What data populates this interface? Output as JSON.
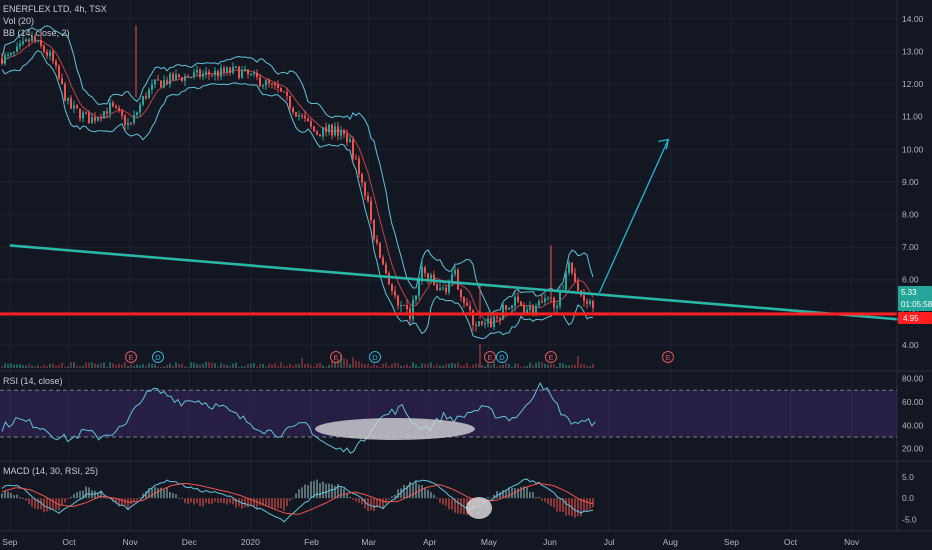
{
  "header": {
    "title": "ENERFLEX LTD, 4h, TSX",
    "volume_label": "Vol (20)",
    "bb_label": "BB (14, close, 2)"
  },
  "rsi": {
    "label": "RSI (14, close)",
    "ticks": [
      "80.00",
      "60.00",
      "40.00",
      "20.00"
    ]
  },
  "macd": {
    "label": "MACD (14, 30, RSI, 25)",
    "ticks": [
      "5.0",
      "0.0",
      "-5.0"
    ]
  },
  "price_axis": {
    "ticks": [
      "14.00",
      "13.00",
      "12.00",
      "11.00",
      "10.00",
      "9.00",
      "8.00",
      "7.00",
      "6.00",
      "5.00",
      "4.00"
    ],
    "current_price": "5.33",
    "countdown": "01:05:58",
    "support_price": "4.95"
  },
  "time_axis": [
    "Sep",
    "Oct",
    "Nov",
    "Dec",
    "2020",
    "Feb",
    "Mar",
    "Apr",
    "May",
    "Jun",
    "Jul",
    "Aug",
    "Sep",
    "Oct",
    "Nov"
  ],
  "events": [
    "E",
    "D",
    "E",
    "D",
    "E",
    "D",
    "E",
    "E"
  ],
  "colors": {
    "background": "#131722",
    "candle_up": "#26a69a",
    "candle_down": "#ef5350",
    "bollinger": "#5fc3dc",
    "bb_basis": "#e05050",
    "trendline": "#2bb5a6",
    "support": "#ff1f1f",
    "arrow": "#22b5d9",
    "rsi_line": "#5fc3dc",
    "rsi_band": "#7e57c2",
    "macd_line": "#5fc3dc",
    "signal_line": "#ef5350"
  },
  "chart_data": {
    "type": "line",
    "symbol": "ENERFLEX LTD",
    "interval": "4h",
    "exchange": "TSX",
    "ylim": [
      3.6,
      14.3
    ],
    "log_scale": false,
    "grid": true,
    "price_path": [
      {
        "x": "2019-09-01",
        "y": 12.8
      },
      {
        "x": "2019-09-12",
        "y": 13.4
      },
      {
        "x": "2019-09-22",
        "y": 12.8
      },
      {
        "x": "2019-10-01",
        "y": 11.3
      },
      {
        "x": "2019-10-12",
        "y": 10.9
      },
      {
        "x": "2019-10-22",
        "y": 11.3
      },
      {
        "x": "2019-11-01",
        "y": 10.7
      },
      {
        "x": "2019-11-08",
        "y": 11.6
      },
      {
        "x": "2019-11-14",
        "y": 12.0
      },
      {
        "x": "2019-11-25",
        "y": 12.2
      },
      {
        "x": "2019-12-10",
        "y": 12.3
      },
      {
        "x": "2019-12-25",
        "y": 12.4
      },
      {
        "x": "2020-01-06",
        "y": 12.1
      },
      {
        "x": "2020-01-15",
        "y": 11.8
      },
      {
        "x": "2020-01-25",
        "y": 11.1
      },
      {
        "x": "2020-02-03",
        "y": 10.5
      },
      {
        "x": "2020-02-12",
        "y": 10.6
      },
      {
        "x": "2020-02-20",
        "y": 10.3
      },
      {
        "x": "2020-02-28",
        "y": 8.7
      },
      {
        "x": "2020-03-05",
        "y": 7.0
      },
      {
        "x": "2020-03-10",
        "y": 6.2
      },
      {
        "x": "2020-03-16",
        "y": 5.1
      },
      {
        "x": "2020-03-22",
        "y": 4.9
      },
      {
        "x": "2020-03-28",
        "y": 6.3
      },
      {
        "x": "2020-04-06",
        "y": 5.6
      },
      {
        "x": "2020-04-14",
        "y": 6.1
      },
      {
        "x": "2020-04-22",
        "y": 4.8
      },
      {
        "x": "2020-04-28",
        "y": 4.5
      },
      {
        "x": "2020-05-06",
        "y": 4.9
      },
      {
        "x": "2020-05-14",
        "y": 5.3
      },
      {
        "x": "2020-05-22",
        "y": 5.1
      },
      {
        "x": "2020-06-01",
        "y": 5.3
      },
      {
        "x": "2020-06-08",
        "y": 5.5
      },
      {
        "x": "2020-06-10",
        "y": 6.9
      },
      {
        "x": "2020-06-14",
        "y": 5.7
      },
      {
        "x": "2020-06-20",
        "y": 5.4
      },
      {
        "x": "2020-06-24",
        "y": 5.33
      }
    ],
    "current_price": 5.33,
    "horizontal_support": 4.95,
    "trendline": {
      "start": {
        "x": "2019-09-01",
        "y": 7.05
      },
      "end": {
        "x": "2020-11-30",
        "y": 4.7
      }
    },
    "projection_arrow": {
      "start": {
        "x": "2020-06-26",
        "y": 5.6
      },
      "end": {
        "x": "2020-07-31",
        "y": 10.3
      }
    },
    "rsi": {
      "ylim": [
        12,
        83
      ],
      "upper_band": 70,
      "lower_band": 30,
      "values": [
        38,
        45,
        42,
        38,
        30,
        28,
        35,
        30,
        34,
        40,
        62,
        70,
        66,
        60,
        62,
        58,
        55,
        48,
        42,
        36,
        33,
        36,
        42,
        28,
        20,
        18,
        24,
        42,
        50,
        55,
        40,
        38,
        48,
        45,
        52,
        54,
        48,
        46,
        55,
        78,
        60,
        44,
        42,
        43
      ]
    },
    "macd": {
      "ylim": [
        -7,
        7.8
      ],
      "macd_values": [
        2.5,
        3.2,
        1.0,
        -2.0,
        -3.5,
        -1.5,
        0.8,
        1.5,
        -1.0,
        -2.5,
        0.5,
        3.5,
        4.2,
        2.8,
        1.8,
        1.4,
        0.5,
        -1.0,
        -2.2,
        -3.8,
        -5.5,
        -2.5,
        0.5,
        1.5,
        3.0,
        1.0,
        -1.5,
        -2.5,
        0.5,
        3.5,
        4.5,
        2.5,
        -0.5,
        -2.5,
        -1.5,
        0.5,
        2.5,
        4.5,
        3.5,
        1.5,
        -1.5,
        -3.5,
        -2.5
      ],
      "signal_values": [
        1.5,
        2.5,
        2.0,
        0.5,
        -1.5,
        -2.0,
        -1.0,
        0.5,
        0.0,
        -1.0,
        -0.5,
        1.5,
        3.0,
        3.5,
        3.0,
        2.2,
        1.5,
        0.5,
        -0.8,
        -2.2,
        -3.5,
        -3.8,
        -2.5,
        -1.0,
        0.8,
        1.5,
        0.5,
        -0.8,
        -0.8,
        0.8,
        2.5,
        3.2,
        2.0,
        0.2,
        -0.8,
        -0.5,
        0.8,
        2.5,
        3.5,
        3.0,
        1.5,
        -0.5,
        -1.5
      ]
    }
  }
}
